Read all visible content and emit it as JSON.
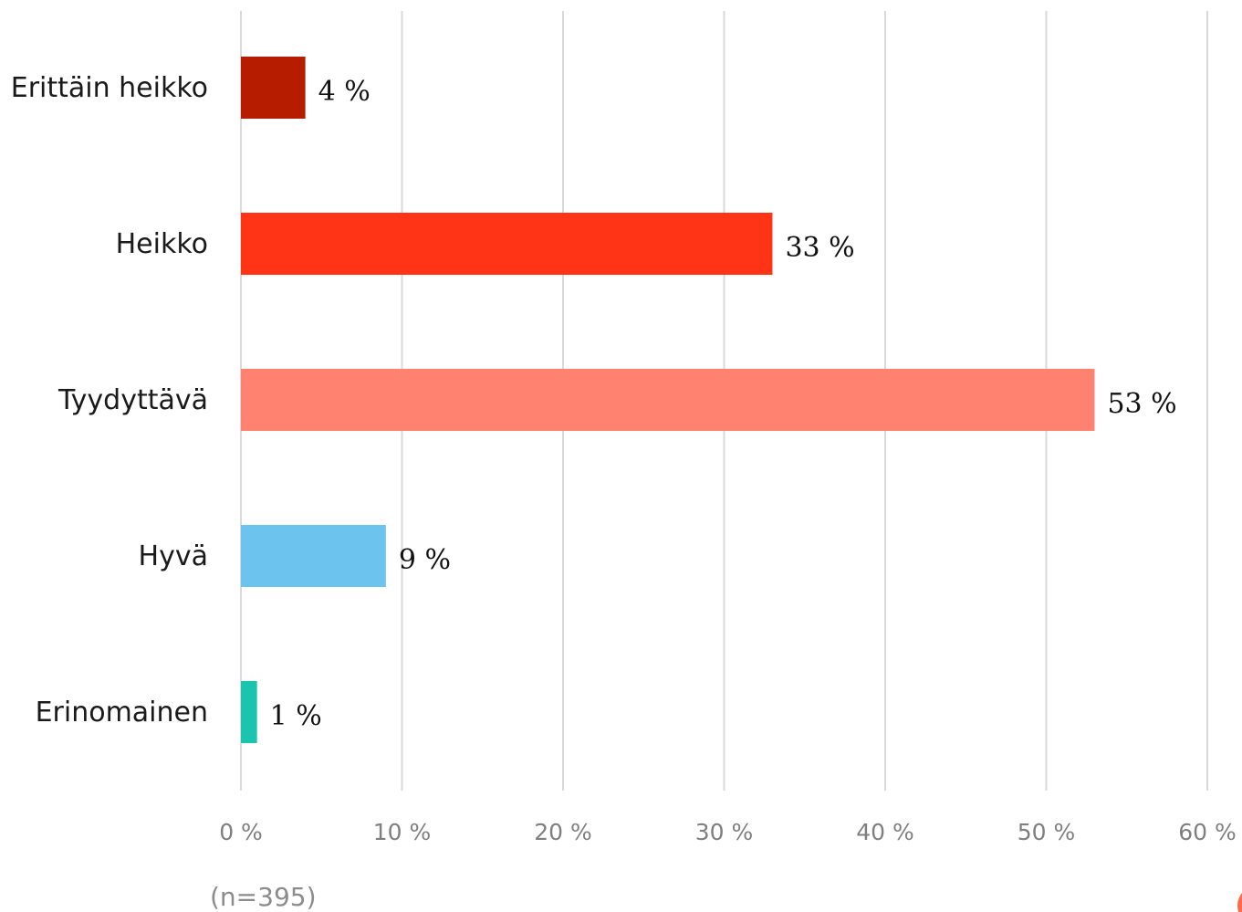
{
  "chart_data": {
    "type": "bar",
    "orientation": "horizontal",
    "categories": [
      "Erittäin heikko",
      "Heikko",
      "Tyydyttävä",
      "Hyvä",
      "Erinomainen"
    ],
    "values": [
      4,
      33,
      53,
      9,
      1
    ],
    "value_labels": [
      "4 %",
      "33 %",
      "53 %",
      "9 %",
      "1 %"
    ],
    "colors": [
      "#b51c00",
      "#ff3316",
      "#ff8270",
      "#6cc3ee",
      "#1ac4ae"
    ],
    "xlim": [
      0,
      60
    ],
    "x_ticks": [
      0,
      10,
      20,
      30,
      40,
      50,
      60
    ],
    "x_tick_labels": [
      "0 %",
      "10 %",
      "20 %",
      "30 %",
      "40 %",
      "50 %",
      "60 %"
    ],
    "grid": "vertical",
    "legend": "none"
  },
  "note": "(n=395)"
}
